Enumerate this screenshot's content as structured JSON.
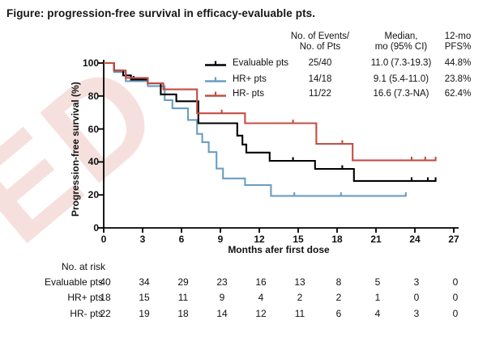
{
  "page": {
    "title": "Figure: progression-free survival in efficacy-evaluable pts.",
    "background": "#ffffff",
    "watermark": {
      "text": "ED",
      "color": "#d9746a",
      "opacity": 0.22
    }
  },
  "legend": {
    "col_events_line1": "No. of Events/",
    "col_events_line2": "No. of Pts",
    "col_median_line1": "Median,",
    "col_median_line2": "mo (95% CI)",
    "col_pfs_line1": "12-mo",
    "col_pfs_line2": "PFS%",
    "rows": [
      {
        "name": "Evaluable pts",
        "events": "25/40",
        "median": "11.0 (7.3-19.3)",
        "pfs": "44.8%",
        "color": "#000000"
      },
      {
        "name": "HR+ pts",
        "events": "14/18",
        "median": "9.1 (5.4-11.0)",
        "pfs": "23.8%",
        "color": "#6b9dc2"
      },
      {
        "name": "HR- pts",
        "events": "11/22",
        "median": "16.6 (7.3-NA)",
        "pfs": "62.4%",
        "color": "#c14e44"
      }
    ]
  },
  "chart_data": {
    "type": "line",
    "subtype": "kaplan-meier-step",
    "title": "Figure: progression-free survival in efficacy-evaluable pts.",
    "xlabel": "Months afer first dose",
    "ylabel": "Progression-free survival (%)",
    "xlim": [
      0,
      27
    ],
    "ylim": [
      0,
      100
    ],
    "xticks": [
      0,
      3,
      6,
      9,
      12,
      15,
      18,
      21,
      24,
      27
    ],
    "yticks": [
      0,
      20,
      40,
      60,
      80,
      100
    ],
    "grid": false,
    "legend_position": "top-right",
    "series": [
      {
        "name": "Evaluable pts",
        "color": "#000000",
        "events_over_pts": "25/40",
        "median_mo_95ci": "11.0 (7.3-19.3)",
        "pfs_12mo": "44.8%",
        "steps": [
          [
            0,
            100
          ],
          [
            0.8,
            95.5
          ],
          [
            1.5,
            92.5
          ],
          [
            2.1,
            90
          ],
          [
            3.4,
            87.7
          ],
          [
            4.4,
            81
          ],
          [
            5.6,
            76.8
          ],
          [
            7.3,
            63.5
          ],
          [
            10.3,
            56
          ],
          [
            10.7,
            50.6
          ],
          [
            11.0,
            45.7
          ],
          [
            12.8,
            40.7
          ],
          [
            16.3,
            35.8
          ],
          [
            19.3,
            28.5
          ]
        ],
        "end_month": 25.6,
        "censors": [
          [
            2.3,
            90
          ],
          [
            14.6,
            40.7
          ],
          [
            18.4,
            35.8
          ],
          [
            23.75,
            28.5
          ],
          [
            25.0,
            28.5
          ],
          [
            25.6,
            28.5
          ]
        ]
      },
      {
        "name": "HR+ pts",
        "color": "#6b9dc2",
        "events_over_pts": "14/18",
        "median_mo_95ci": "9.1 (5.4-11.0)",
        "pfs_12mo": "23.8%",
        "steps": [
          [
            0,
            100
          ],
          [
            0.8,
            94.5
          ],
          [
            1.7,
            89
          ],
          [
            3.4,
            86
          ],
          [
            4.7,
            77.5
          ],
          [
            5.3,
            72.5
          ],
          [
            6.5,
            65.5
          ],
          [
            7.2,
            57
          ],
          [
            7.6,
            52
          ],
          [
            8.1,
            46
          ],
          [
            8.7,
            36
          ],
          [
            9.2,
            30
          ],
          [
            10.9,
            26
          ],
          [
            12.9,
            19.4
          ]
        ],
        "end_month": 23.3,
        "censors": [
          [
            14.7,
            19.4
          ],
          [
            18.3,
            19.4
          ],
          [
            23.3,
            19.4
          ]
        ]
      },
      {
        "name": "HR- pts",
        "color": "#c14e44",
        "events_over_pts": "11/22",
        "median_mo_95ci": "16.6 (7.3-NA)",
        "pfs_12mo": "62.4%",
        "steps": [
          [
            0,
            100
          ],
          [
            0.8,
            95.5
          ],
          [
            1.7,
            91
          ],
          [
            3.4,
            87.7
          ],
          [
            4.6,
            84
          ],
          [
            7.2,
            69.5
          ],
          [
            10.9,
            63.5
          ],
          [
            16.4,
            51
          ],
          [
            19.2,
            41
          ]
        ],
        "end_month": 25.6,
        "censors": [
          [
            9.1,
            69.5
          ],
          [
            14.6,
            63.5
          ],
          [
            18.4,
            51
          ],
          [
            23.75,
            41
          ],
          [
            24.8,
            41
          ],
          [
            25.6,
            41
          ]
        ]
      }
    ],
    "at_risk": {
      "label": "No. at risk",
      "months": [
        0,
        3,
        6,
        9,
        12,
        15,
        18,
        21,
        24,
        27
      ],
      "rows": [
        {
          "name": "Evaluable pts",
          "values": [
            40,
            34,
            29,
            23,
            16,
            13,
            8,
            5,
            3,
            0
          ]
        },
        {
          "name": "HR+ pts",
          "values": [
            18,
            15,
            11,
            9,
            4,
            2,
            2,
            1,
            0,
            0
          ]
        },
        {
          "name": "HR- pts",
          "values": [
            22,
            19,
            18,
            14,
            12,
            11,
            6,
            4,
            3,
            0
          ]
        }
      ]
    }
  }
}
